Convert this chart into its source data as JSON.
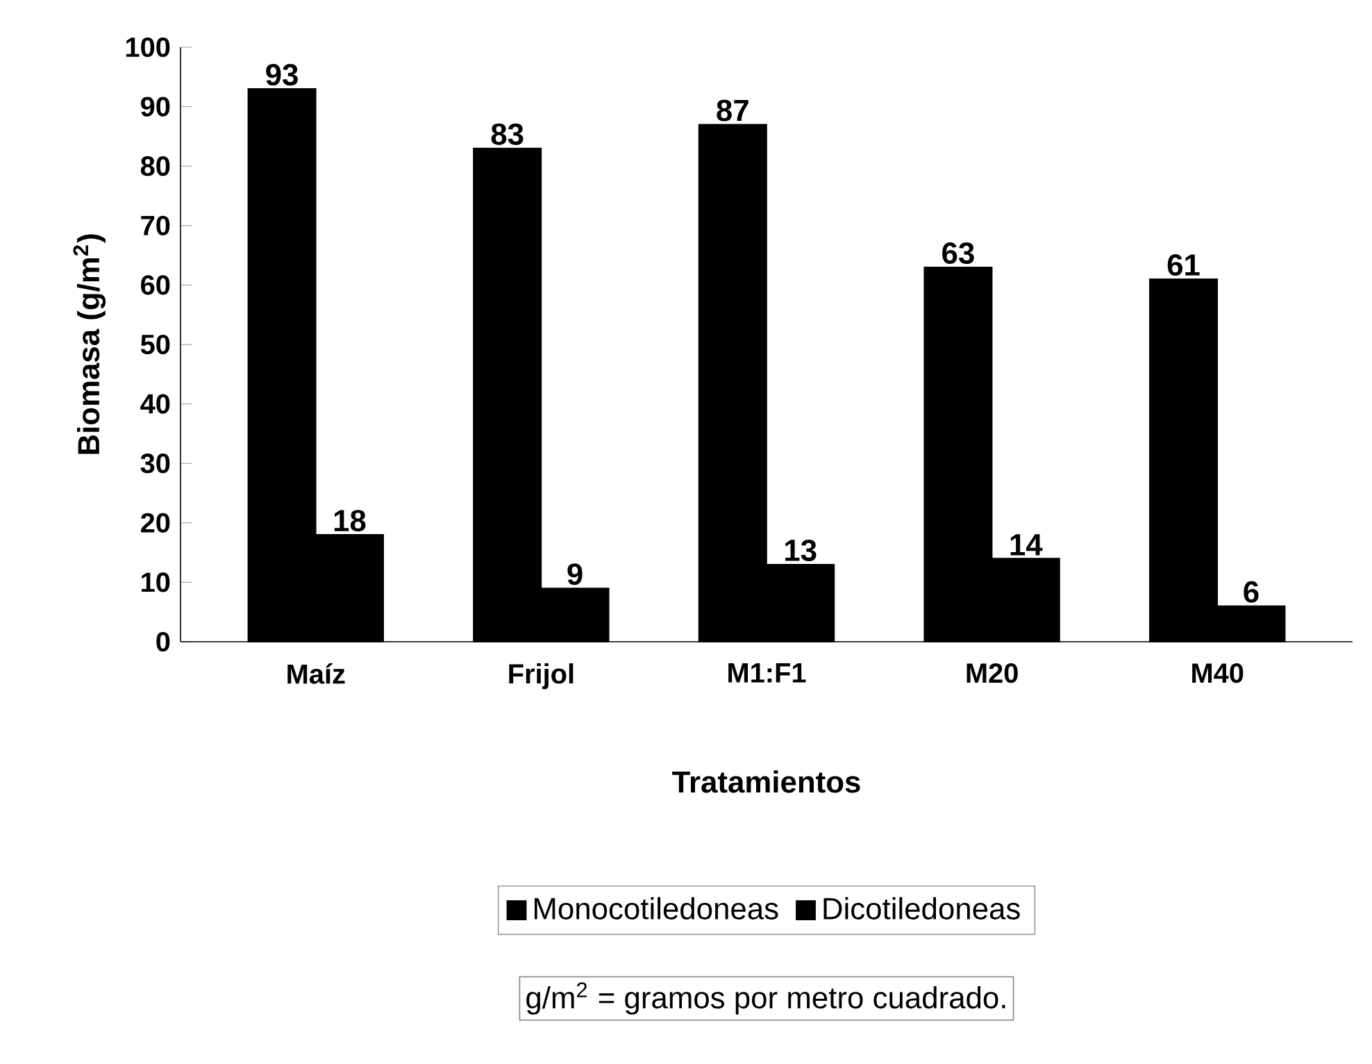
{
  "chart_data": {
    "type": "bar",
    "xlabel": "Tratamientos",
    "ylabel": "Biomasa (g/m$^{2}$)",
    "categories": [
      "Maíz",
      "Frijol",
      "M1:F1",
      "M20",
      "M40"
    ],
    "series": [
      {
        "name": "Monocotiledoneas",
        "color": "#000000",
        "values": [
          93,
          83,
          87,
          63,
          61
        ]
      },
      {
        "name": "Dicotiledoneas",
        "color": "#000000",
        "values": [
          18,
          9,
          13,
          14,
          6
        ]
      }
    ],
    "ylim": [
      0,
      100
    ],
    "yticks": [
      0,
      10,
      20,
      30,
      40,
      50,
      60,
      70,
      80,
      90,
      100
    ],
    "data_labels": true,
    "legend": "bottom",
    "grid": false,
    "annotations": [
      "g/m$^{2}$ = gramos por metro cuadrado."
    ]
  }
}
